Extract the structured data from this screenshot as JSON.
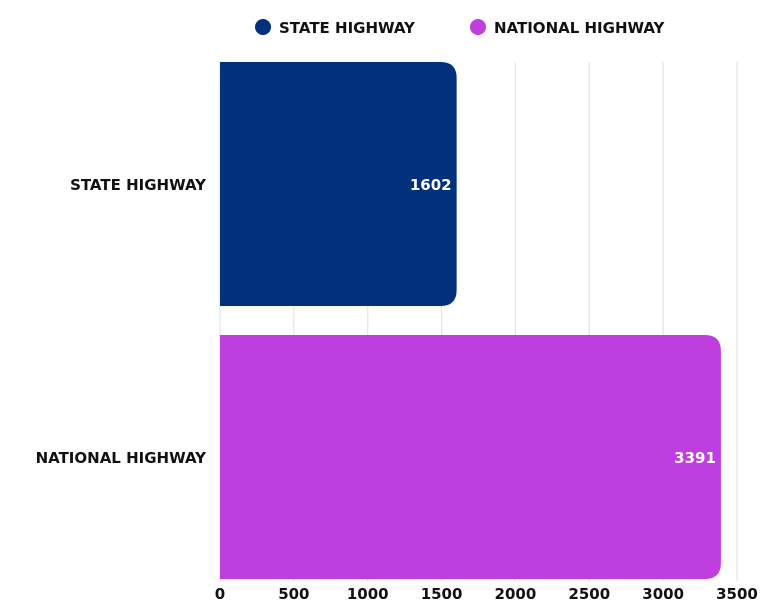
{
  "chart_data": {
    "type": "bar",
    "orientation": "horizontal",
    "categories": [
      "STATE HIGHWAY",
      "NATIONAL HIGHWAY"
    ],
    "values": [
      1602,
      3391
    ],
    "colors": [
      "#00317A",
      "#BF3FDE"
    ],
    "legend": {
      "placement": "top",
      "entries": [
        {
          "label": "STATE HIGHWAY",
          "color": "#00317A"
        },
        {
          "label": "NATIONAL HIGHWAY",
          "color": "#BF3FDE"
        }
      ]
    },
    "xlim": [
      0,
      3500
    ],
    "xticks": [
      0,
      500,
      1000,
      1500,
      2000,
      2500,
      3000,
      3500
    ],
    "data_labels": [
      "1602",
      "3391"
    ],
    "grid": "vertical",
    "grid_color": "#e3e3e3"
  }
}
